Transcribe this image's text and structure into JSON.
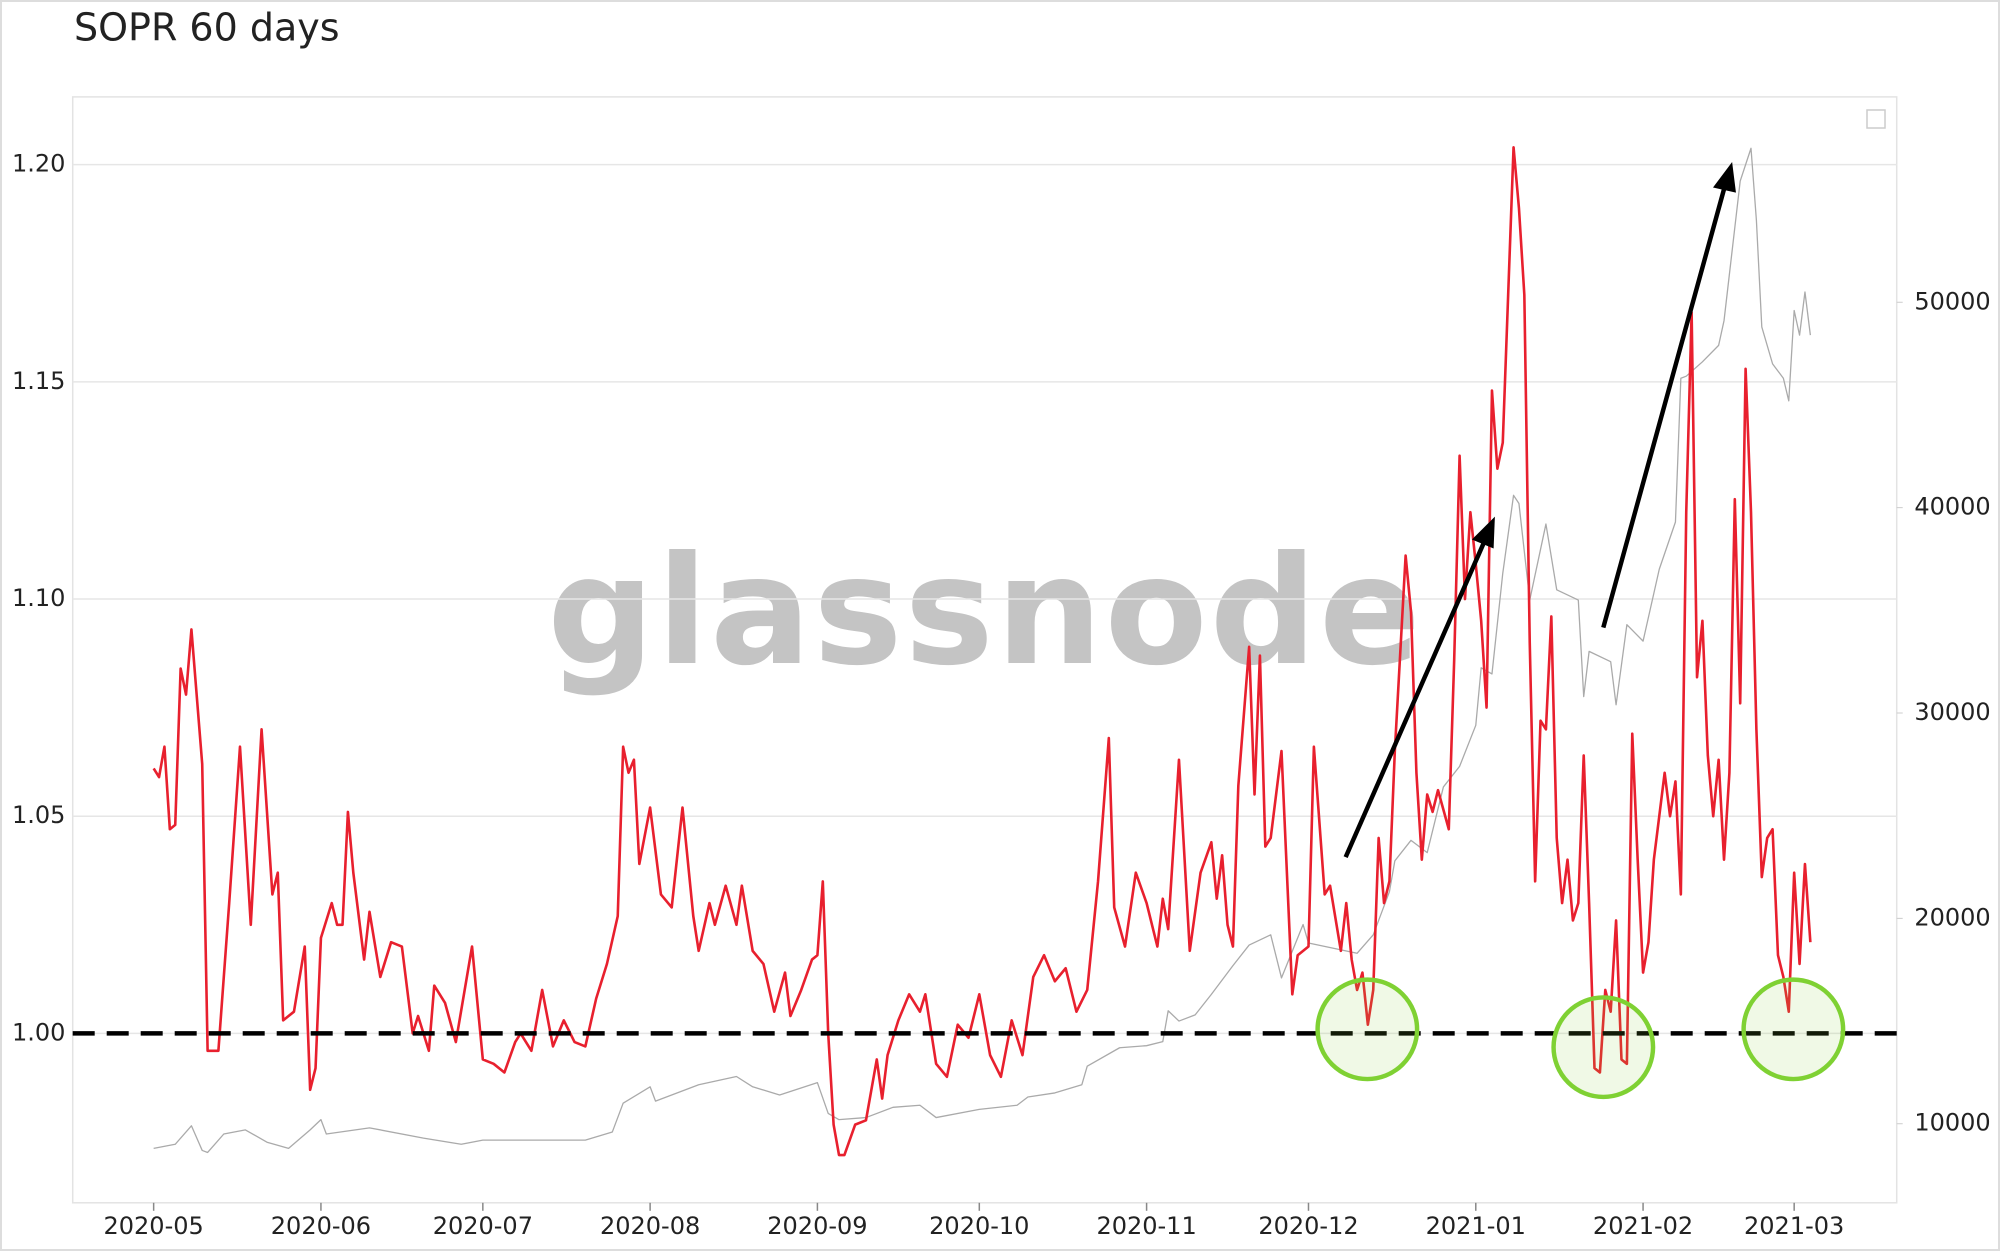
{
  "chart_data": {
    "type": "line",
    "title": "SOPR 60 days",
    "watermark": "glassnode",
    "xlim": [
      "2020-04-16",
      "2021-03-20"
    ],
    "xticks": [
      {
        "value": "2020-05-01",
        "label": "2020-05"
      },
      {
        "value": "2020-06-01",
        "label": "2020-06"
      },
      {
        "value": "2020-07-01",
        "label": "2020-07"
      },
      {
        "value": "2020-08-01",
        "label": "2020-08"
      },
      {
        "value": "2020-09-01",
        "label": "2020-09"
      },
      {
        "value": "2020-10-01",
        "label": "2020-10"
      },
      {
        "value": "2020-11-01",
        "label": "2020-11"
      },
      {
        "value": "2020-12-01",
        "label": "2020-12"
      },
      {
        "value": "2021-01-01",
        "label": "2021-01"
      },
      {
        "value": "2021-02-01",
        "label": "2021-02"
      },
      {
        "value": "2021-03-01",
        "label": "2021-03"
      }
    ],
    "ylim": [
      0.961,
      1.2156
    ],
    "yticks": [
      {
        "value": 1.0,
        "label": "1.00"
      },
      1.05,
      {
        "value": 1.1,
        "label": "1.10"
      },
      1.15,
      {
        "value": 1.2,
        "label": "1.20"
      }
    ],
    "y2lim": [
      6150,
      60000
    ],
    "y2ticks": [
      10000,
      20000,
      30000,
      40000,
      50000
    ],
    "grid": true,
    "hline": 1.0,
    "series": [
      {
        "color": "#e8202e",
        "x": [
          "2020-05-01",
          "2020-05-02",
          "2020-05-03",
          "2020-05-04",
          "2020-05-05",
          "2020-05-06",
          "2020-05-07",
          "2020-05-08",
          "2020-05-10",
          "2020-05-11",
          "2020-05-13",
          "2020-05-15",
          "2020-05-17",
          "2020-05-19",
          "2020-05-21",
          "2020-05-23",
          "2020-05-24",
          "2020-05-25",
          "2020-05-27",
          "2020-05-29",
          "2020-05-30",
          "2020-05-31",
          "2020-06-01",
          "2020-06-03",
          "2020-06-04",
          "2020-06-05",
          "2020-06-06",
          "2020-06-07",
          "2020-06-09",
          "2020-06-10",
          "2020-06-12",
          "2020-06-14",
          "2020-06-16",
          "2020-06-18",
          "2020-06-19",
          "2020-06-21",
          "2020-06-22",
          "2020-06-24",
          "2020-06-26",
          "2020-06-29",
          "2020-07-01",
          "2020-07-03",
          "2020-07-05",
          "2020-07-07",
          "2020-07-08",
          "2020-07-10",
          "2020-07-12",
          "2020-07-14",
          "2020-07-16",
          "2020-07-18",
          "2020-07-20",
          "2020-07-22",
          "2020-07-24",
          "2020-07-26",
          "2020-07-27",
          "2020-07-28",
          "2020-07-29",
          "2020-07-30",
          "2020-08-01",
          "2020-08-03",
          "2020-08-05",
          "2020-08-07",
          "2020-08-09",
          "2020-08-10",
          "2020-08-12",
          "2020-08-13",
          "2020-08-15",
          "2020-08-17",
          "2020-08-18",
          "2020-08-20",
          "2020-08-22",
          "2020-08-24",
          "2020-08-26",
          "2020-08-27",
          "2020-08-29",
          "2020-08-31",
          "2020-09-01",
          "2020-09-02",
          "2020-09-03",
          "2020-09-04",
          "2020-09-05",
          "2020-09-06",
          "2020-09-08",
          "2020-09-10",
          "2020-09-12",
          "2020-09-13",
          "2020-09-14",
          "2020-09-16",
          "2020-09-18",
          "2020-09-20",
          "2020-09-21",
          "2020-09-23",
          "2020-09-25",
          "2020-09-27",
          "2020-09-29",
          "2020-10-01",
          "2020-10-03",
          "2020-10-05",
          "2020-10-07",
          "2020-10-09",
          "2020-10-11",
          "2020-10-13",
          "2020-10-15",
          "2020-10-17",
          "2020-10-19",
          "2020-10-21",
          "2020-10-23",
          "2020-10-25",
          "2020-10-26",
          "2020-10-28",
          "2020-10-30",
          "2020-11-01",
          "2020-11-03",
          "2020-11-04",
          "2020-11-05",
          "2020-11-07",
          "2020-11-09",
          "2020-11-11",
          "2020-11-13",
          "2020-11-14",
          "2020-11-15",
          "2020-11-16",
          "2020-11-17",
          "2020-11-18",
          "2020-11-20",
          "2020-11-21",
          "2020-11-22",
          "2020-11-23",
          "2020-11-24",
          "2020-11-26",
          "2020-11-28",
          "2020-11-29",
          "2020-12-01",
          "2020-12-02",
          "2020-12-04",
          "2020-12-05",
          "2020-12-07",
          "2020-12-08",
          "2020-12-09",
          "2020-12-10",
          "2020-12-11",
          "2020-12-12",
          "2020-12-13",
          "2020-12-14",
          "2020-12-15",
          "2020-12-16",
          "2020-12-17",
          "2020-12-19",
          "2020-12-20",
          "2020-12-21",
          "2020-12-22",
          "2020-12-23",
          "2020-12-24",
          "2020-12-25",
          "2020-12-27",
          "2020-12-28",
          "2020-12-29",
          "2020-12-30",
          "2020-12-31",
          "2021-01-01",
          "2021-01-02",
          "2021-01-03",
          "2021-01-04",
          "2021-01-05",
          "2021-01-06",
          "2021-01-07",
          "2021-01-08",
          "2021-01-09",
          "2021-01-10",
          "2021-01-11",
          "2021-01-12",
          "2021-01-13",
          "2021-01-14",
          "2021-01-15",
          "2021-01-16",
          "2021-01-17",
          "2021-01-18",
          "2021-01-19",
          "2021-01-20",
          "2021-01-21",
          "2021-01-22",
          "2021-01-23",
          "2021-01-24",
          "2021-01-25",
          "2021-01-26",
          "2021-01-27",
          "2021-01-28",
          "2021-01-29",
          "2021-01-30",
          "2021-01-31",
          "2021-02-01",
          "2021-02-02",
          "2021-02-03",
          "2021-02-05",
          "2021-02-06",
          "2021-02-07",
          "2021-02-08",
          "2021-02-09",
          "2021-02-10",
          "2021-02-11",
          "2021-02-12",
          "2021-02-13",
          "2021-02-14",
          "2021-02-15",
          "2021-02-16",
          "2021-02-17",
          "2021-02-18",
          "2021-02-19",
          "2021-02-20",
          "2021-02-21",
          "2021-02-22",
          "2021-02-23",
          "2021-02-24",
          "2021-02-25",
          "2021-02-26",
          "2021-02-27",
          "2021-02-28",
          "2021-03-01",
          "2021-03-02",
          "2021-03-03",
          "2021-03-04"
        ],
        "values": [
          1.061,
          1.059,
          1.066,
          1.047,
          1.048,
          1.084,
          1.078,
          1.093,
          1.062,
          0.996,
          0.996,
          1.03,
          1.066,
          1.025,
          1.07,
          1.032,
          1.037,
          1.003,
          1.005,
          1.02,
          0.987,
          0.992,
          1.022,
          1.03,
          1.025,
          1.025,
          1.051,
          1.037,
          1.017,
          1.028,
          1.013,
          1.021,
          1.02,
          1.0,
          1.004,
          0.996,
          1.011,
          1.007,
          0.998,
          1.02,
          0.994,
          0.993,
          0.991,
          0.998,
          1.0,
          0.996,
          1.01,
          0.997,
          1.003,
          0.998,
          0.997,
          1.008,
          1.016,
          1.027,
          1.066,
          1.06,
          1.063,
          1.039,
          1.052,
          1.032,
          1.029,
          1.052,
          1.027,
          1.019,
          1.03,
          1.025,
          1.034,
          1.025,
          1.034,
          1.019,
          1.016,
          1.005,
          1.014,
          1.004,
          1.01,
          1.017,
          1.018,
          1.035,
          1.0,
          0.979,
          0.972,
          0.972,
          0.979,
          0.98,
          0.994,
          0.985,
          0.995,
          1.003,
          1.009,
          1.005,
          1.009,
          0.993,
          0.99,
          1.002,
          0.999,
          1.009,
          0.995,
          0.99,
          1.003,
          0.995,
          1.013,
          1.018,
          1.012,
          1.015,
          1.005,
          1.01,
          1.035,
          1.068,
          1.029,
          1.02,
          1.037,
          1.03,
          1.02,
          1.031,
          1.024,
          1.063,
          1.019,
          1.037,
          1.044,
          1.031,
          1.041,
          1.025,
          1.02,
          1.057,
          1.089,
          1.055,
          1.087,
          1.043,
          1.045,
          1.065,
          1.009,
          1.018,
          1.02,
          1.066,
          1.032,
          1.034,
          1.019,
          1.03,
          1.017,
          1.01,
          1.014,
          1.002,
          1.01,
          1.045,
          1.03,
          1.035,
          1.065,
          1.11,
          1.097,
          1.06,
          1.04,
          1.055,
          1.051,
          1.056,
          1.047,
          1.086,
          1.133,
          1.1,
          1.12,
          1.108,
          1.095,
          1.075,
          1.148,
          1.13,
          1.136,
          1.17,
          1.204,
          1.19,
          1.17,
          1.09,
          1.035,
          1.072,
          1.07,
          1.096,
          1.045,
          1.03,
          1.04,
          1.026,
          1.03,
          1.064,
          1.03,
          0.992,
          0.991,
          1.01,
          1.005,
          1.026,
          0.994,
          0.993,
          1.069,
          1.04,
          1.014,
          1.021,
          1.04,
          1.06,
          1.05,
          1.058,
          1.032,
          1.12,
          1.166,
          1.082,
          1.095,
          1.064,
          1.05,
          1.063,
          1.04,
          1.06,
          1.123,
          1.076,
          1.153,
          1.12,
          1.07,
          1.036,
          1.045,
          1.047,
          1.018,
          1.013,
          1.005,
          1.037,
          1.016,
          1.039,
          1.021
        ]
      },
      {
        "color": "#aaaaaa",
        "axis": "y2",
        "x": [
          "2020-05-01",
          "2020-05-05",
          "2020-05-08",
          "2020-05-10",
          "2020-05-11",
          "2020-05-14",
          "2020-05-18",
          "2020-05-22",
          "2020-05-26",
          "2020-05-30",
          "2020-06-01",
          "2020-06-02",
          "2020-06-10",
          "2020-06-20",
          "2020-06-27",
          "2020-07-01",
          "2020-07-10",
          "2020-07-20",
          "2020-07-25",
          "2020-07-27",
          "2020-08-01",
          "2020-08-02",
          "2020-08-10",
          "2020-08-17",
          "2020-08-20",
          "2020-08-25",
          "2020-09-01",
          "2020-09-03",
          "2020-09-05",
          "2020-09-10",
          "2020-09-15",
          "2020-09-20",
          "2020-09-23",
          "2020-10-01",
          "2020-10-08",
          "2020-10-10",
          "2020-10-15",
          "2020-10-20",
          "2020-10-21",
          "2020-10-27",
          "2020-11-01",
          "2020-11-04",
          "2020-11-05",
          "2020-11-07",
          "2020-11-10",
          "2020-11-13",
          "2020-11-17",
          "2020-11-20",
          "2020-11-24",
          "2020-11-26",
          "2020-11-30",
          "2020-12-01",
          "2020-12-10",
          "2020-12-13",
          "2020-12-16",
          "2020-12-17",
          "2020-12-20",
          "2020-12-23",
          "2020-12-26",
          "2020-12-29",
          "2021-01-01",
          "2021-01-02",
          "2021-01-04",
          "2021-01-06",
          "2021-01-08",
          "2021-01-09",
          "2021-01-11",
          "2021-01-14",
          "2021-01-16",
          "2021-01-20",
          "2021-01-21",
          "2021-01-22",
          "2021-01-26",
          "2021-01-27",
          "2021-01-29",
          "2021-02-01",
          "2021-02-04",
          "2021-02-07",
          "2021-02-08",
          "2021-02-09",
          "2021-02-12",
          "2021-02-15",
          "2021-02-16",
          "2021-02-19",
          "2021-02-21",
          "2021-02-22",
          "2021-02-23",
          "2021-02-25",
          "2021-02-27",
          "2021-02-28",
          "2021-03-01",
          "2021-03-02",
          "2021-03-03",
          "2021-03-04"
        ],
        "values": [
          8800,
          9000,
          9900,
          8700,
          8600,
          9500,
          9700,
          9100,
          8800,
          9700,
          10200,
          9500,
          9800,
          9300,
          9000,
          9200,
          9200,
          9200,
          9600,
          11000,
          11800,
          11100,
          11900,
          12300,
          11800,
          11400,
          12000,
          10500,
          10200,
          10300,
          10800,
          10900,
          10300,
          10700,
          10900,
          11300,
          11500,
          11900,
          12800,
          13700,
          13800,
          14000,
          15500,
          15000,
          15300,
          16300,
          17700,
          18700,
          19200,
          17100,
          19700,
          18800,
          18300,
          19200,
          21300,
          22800,
          23800,
          23200,
          26400,
          27400,
          29400,
          32200,
          31900,
          36800,
          40600,
          40200,
          35500,
          39200,
          36000,
          35500,
          30800,
          33000,
          32500,
          30400,
          34300,
          33500,
          37000,
          39300,
          46300,
          46400,
          47100,
          47900,
          49100,
          55900,
          57500,
          54000,
          48800,
          47000,
          46300,
          45200,
          49600,
          48400,
          50500,
          48400
        ]
      }
    ]
  }
}
